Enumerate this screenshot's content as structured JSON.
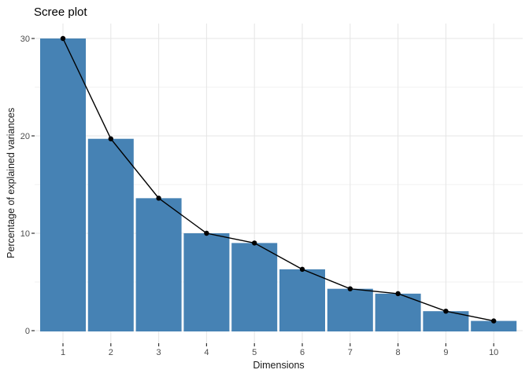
{
  "figure_title": "Scree plot",
  "chart_data": {
    "type": "bar",
    "overlay": "line+points",
    "title": "Scree plot",
    "xlabel": "Dimensions",
    "ylabel": "Percentage of explained variances",
    "categories": [
      "1",
      "2",
      "3",
      "4",
      "5",
      "6",
      "7",
      "8",
      "9",
      "10"
    ],
    "values": [
      30.0,
      19.7,
      13.6,
      10.0,
      9.0,
      6.3,
      4.3,
      3.8,
      2.0,
      1.0
    ],
    "series": [
      {
        "name": "percentage-of-explained-variance-bars",
        "values": [
          30.0,
          19.7,
          13.6,
          10.0,
          9.0,
          6.3,
          4.3,
          3.8,
          2.0,
          1.0
        ]
      },
      {
        "name": "percentage-of-explained-variance-line",
        "values": [
          30.0,
          19.7,
          13.6,
          10.0,
          9.0,
          6.3,
          4.3,
          3.8,
          2.0,
          1.0
        ]
      }
    ],
    "ylim": [
      0,
      31.5
    ],
    "yticks": [
      0,
      10,
      20,
      30
    ],
    "yticks_minor": [
      5,
      15,
      25
    ],
    "grid": true,
    "legend_position": "none",
    "colors": {
      "bar_fill": "#4682B4",
      "line": "#000000",
      "point": "#000000",
      "grid_major": "#e5e5e5",
      "grid_minor": "#f0f0f0",
      "tick_mark": "#333333",
      "tick_text": "#4d4d4d",
      "background": "#ffffff"
    }
  }
}
